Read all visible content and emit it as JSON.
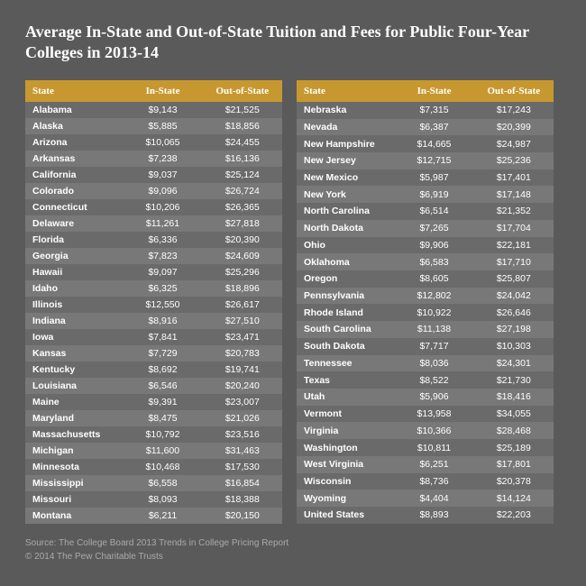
{
  "title": "Average In-State and Out-of-State Tuition and Fees for Public Four-Year Colleges in 2013-14",
  "headers": {
    "state": "State",
    "inState": "In-State",
    "outState": "Out-of-State"
  },
  "left": [
    {
      "s": "Alabama",
      "i": "$9,143",
      "o": "$21,525"
    },
    {
      "s": "Alaska",
      "i": "$5,885",
      "o": "$18,856"
    },
    {
      "s": "Arizona",
      "i": "$10,065",
      "o": "$24,455"
    },
    {
      "s": "Arkansas",
      "i": "$7,238",
      "o": "$16,136"
    },
    {
      "s": "California",
      "i": "$9,037",
      "o": "$25,124"
    },
    {
      "s": "Colorado",
      "i": "$9,096",
      "o": "$26,724"
    },
    {
      "s": "Connecticut",
      "i": "$10,206",
      "o": "$26,365"
    },
    {
      "s": "Delaware",
      "i": "$11,261",
      "o": "$27,818"
    },
    {
      "s": "Florida",
      "i": "$6,336",
      "o": "$20,390"
    },
    {
      "s": "Georgia",
      "i": "$7,823",
      "o": "$24,609"
    },
    {
      "s": "Hawaii",
      "i": "$9,097",
      "o": "$25,296"
    },
    {
      "s": "Idaho",
      "i": "$6,325",
      "o": "$18,896"
    },
    {
      "s": "Illinois",
      "i": "$12,550",
      "o": "$26,617"
    },
    {
      "s": "Indiana",
      "i": "$8,916",
      "o": "$27,510"
    },
    {
      "s": "Iowa",
      "i": "$7,841",
      "o": "$23,471"
    },
    {
      "s": "Kansas",
      "i": "$7,729",
      "o": "$20,783"
    },
    {
      "s": "Kentucky",
      "i": "$8,692",
      "o": "$19,741"
    },
    {
      "s": "Louisiana",
      "i": "$6,546",
      "o": "$20,240"
    },
    {
      "s": "Maine",
      "i": "$9,391",
      "o": "$23,007"
    },
    {
      "s": "Maryland",
      "i": "$8,475",
      "o": "$21,026"
    },
    {
      "s": "Massachusetts",
      "i": "$10,792",
      "o": "$23,516"
    },
    {
      "s": "Michigan",
      "i": "$11,600",
      "o": "$31,463"
    },
    {
      "s": "Minnesota",
      "i": "$10,468",
      "o": "$17,530"
    },
    {
      "s": "Mississippi",
      "i": "$6,558",
      "o": "$16,854"
    },
    {
      "s": "Missouri",
      "i": "$8,093",
      "o": "$18,388"
    },
    {
      "s": "Montana",
      "i": "$6,211",
      "o": "$20,150"
    }
  ],
  "right": [
    {
      "s": "Nebraska",
      "i": "$7,315",
      "o": "$17,243"
    },
    {
      "s": "Nevada",
      "i": "$6,387",
      "o": "$20,399"
    },
    {
      "s": "New Hampshire",
      "i": "$14,665",
      "o": "$24,987"
    },
    {
      "s": "New Jersey",
      "i": "$12,715",
      "o": "$25,236"
    },
    {
      "s": "New Mexico",
      "i": "$5,987",
      "o": "$17,401"
    },
    {
      "s": "New York",
      "i": "$6,919",
      "o": "$17,148"
    },
    {
      "s": "North Carolina",
      "i": "$6,514",
      "o": "$21,352"
    },
    {
      "s": "North Dakota",
      "i": "$7,265",
      "o": "$17,704"
    },
    {
      "s": "Ohio",
      "i": "$9,906",
      "o": "$22,181"
    },
    {
      "s": "Oklahoma",
      "i": "$6,583",
      "o": "$17,710"
    },
    {
      "s": "Oregon",
      "i": "$8,605",
      "o": "$25,807"
    },
    {
      "s": "Pennsylvania",
      "i": "$12,802",
      "o": "$24,042"
    },
    {
      "s": "Rhode Island",
      "i": "$10,922",
      "o": "$26,646"
    },
    {
      "s": "South Carolina",
      "i": "$11,138",
      "o": "$27,198"
    },
    {
      "s": "South Dakota",
      "i": "$7,717",
      "o": "$10,303"
    },
    {
      "s": "Tennessee",
      "i": "$8,036",
      "o": "$24,301"
    },
    {
      "s": "Texas",
      "i": "$8,522",
      "o": "$21,730"
    },
    {
      "s": "Utah",
      "i": "$5,906",
      "o": "$18,416"
    },
    {
      "s": "Vermont",
      "i": "$13,958",
      "o": "$34,055"
    },
    {
      "s": "Virginia",
      "i": "$10,366",
      "o": "$28,468"
    },
    {
      "s": "Washington",
      "i": "$10,811",
      "o": "$25,189"
    },
    {
      "s": "West Virginia",
      "i": "$6,251",
      "o": "$17,801"
    },
    {
      "s": "Wisconsin",
      "i": "$8,736",
      "o": "$20,378"
    },
    {
      "s": "Wyoming",
      "i": "$4,404",
      "o": "$14,124"
    },
    {
      "s": "United States",
      "i": "$8,893",
      "o": "$22,203"
    }
  ],
  "source": "Source: The College Board 2013 Trends in College Pricing Report",
  "copyright": "© 2014 The Pew Charitable Trusts",
  "colors": {
    "background": "#5a5a5a",
    "header_bg": "#c89830",
    "row_odd": "#6a6a6a",
    "row_even": "#787878",
    "text": "#ffffff",
    "footer": "#aaaaaa"
  }
}
